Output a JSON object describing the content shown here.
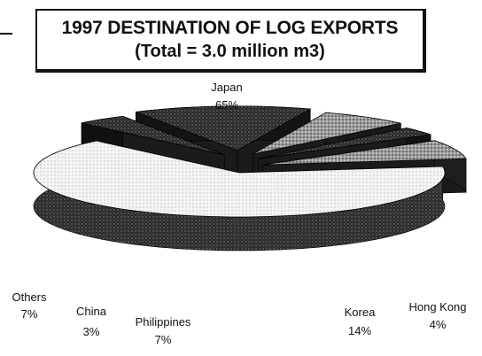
{
  "title": "1997 DESTINATION OF LOG EXPORTS",
  "subtitle": "(Total = 3.0 million m3)",
  "chart_data": {
    "type": "pie",
    "title": "1997 DESTINATION OF LOG EXPORTS",
    "subtitle": "(Total = 3.0 million m3)",
    "categories": [
      "Japan",
      "Hong Kong",
      "Korea",
      "Philippines",
      "China",
      "Others"
    ],
    "values": [
      65,
      4,
      14,
      7,
      3,
      7
    ],
    "labels": [
      "65%",
      "4%",
      "14%",
      "7%",
      "3%",
      "7%"
    ],
    "unit": "%",
    "style": "3d-exploded",
    "legend": "none"
  }
}
